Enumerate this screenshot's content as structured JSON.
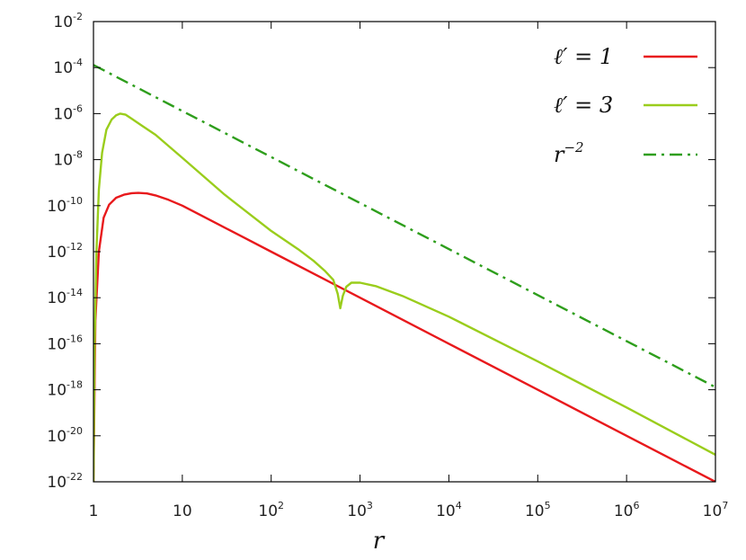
{
  "chart_data": {
    "type": "line",
    "xlabel": "r",
    "ylabel": "",
    "xscale": "log",
    "yscale": "log",
    "xlim": [
      1,
      10000000
    ],
    "ylim": [
      1e-22,
      0.01
    ],
    "grid": false,
    "legend_position": "top-right",
    "x_ticks": [
      {
        "base": "1",
        "exp": ""
      },
      {
        "base": "10",
        "exp": ""
      },
      {
        "base": "10",
        "exp": "2"
      },
      {
        "base": "10",
        "exp": "3"
      },
      {
        "base": "10",
        "exp": "4"
      },
      {
        "base": "10",
        "exp": "5"
      },
      {
        "base": "10",
        "exp": "6"
      },
      {
        "base": "10",
        "exp": "7"
      }
    ],
    "y_ticks": [
      {
        "base": "10",
        "exp": "-2"
      },
      {
        "base": "10",
        "exp": "-4"
      },
      {
        "base": "10",
        "exp": "-6"
      },
      {
        "base": "10",
        "exp": "-8"
      },
      {
        "base": "10",
        "exp": "-10"
      },
      {
        "base": "10",
        "exp": "-12"
      },
      {
        "base": "10",
        "exp": "-14"
      },
      {
        "base": "10",
        "exp": "-16"
      },
      {
        "base": "10",
        "exp": "-18"
      },
      {
        "base": "10",
        "exp": "-20"
      },
      {
        "base": "10",
        "exp": "-22"
      }
    ],
    "series": [
      {
        "name": "ℓ′ = 1",
        "legend_main": "ℓ′ = 1",
        "legend_sup": "",
        "color": "#e8191c",
        "dash": "solid",
        "x": [
          1.0,
          1.05,
          1.15,
          1.3,
          1.5,
          1.8,
          2.2,
          2.7,
          3.2,
          4.0,
          5.0,
          7.0,
          10,
          20,
          50,
          100,
          1000,
          10000,
          100000,
          1000000,
          10000000
        ],
        "y": [
          1e-22,
          1e-15,
          1e-12,
          3e-11,
          1.1e-10,
          2.2e-10,
          3e-10,
          3.5e-10,
          3.6e-10,
          3.4e-10,
          2.8e-10,
          1.8e-10,
          1e-10,
          2.5e-11,
          4e-12,
          1e-12,
          1e-14,
          1e-16,
          1e-18,
          1e-20,
          1e-22
        ]
      },
      {
        "name": "ℓ′ = 3",
        "legend_main": "ℓ′ = 3",
        "legend_sup": "",
        "color": "#9acd1c",
        "dash": "solid",
        "x": [
          1.0,
          1.03,
          1.08,
          1.15,
          1.25,
          1.4,
          1.6,
          1.8,
          2.0,
          2.3,
          2.7,
          3.5,
          5,
          10,
          30,
          100,
          200,
          300,
          400,
          500,
          560,
          600,
          640,
          700,
          800,
          1000,
          1500,
          3000,
          10000,
          100000,
          1000000,
          10000000
        ],
        "y": [
          1e-22,
          1e-16,
          1e-12,
          5e-10,
          2e-08,
          2e-07,
          5.5e-07,
          8.5e-07,
          1e-06,
          9e-07,
          6e-07,
          3e-07,
          1.2e-07,
          1.2e-08,
          3e-10,
          8e-12,
          1.3e-12,
          4e-13,
          1.5e-13,
          6e-14,
          1.5e-14,
          3.5e-15,
          1.2e-14,
          3e-14,
          4.5e-14,
          4.5e-14,
          3.2e-14,
          1.2e-14,
          1.5e-15,
          1.7e-17,
          1.7e-19,
          1.5e-21
        ]
      },
      {
        "name": "r^-2",
        "legend_main": "r",
        "legend_sup": "−2",
        "color": "#2e9e1c",
        "dash": "dashdot",
        "x": [
          1,
          10000000
        ],
        "y": [
          0.00013,
          1.3e-18
        ]
      }
    ]
  }
}
